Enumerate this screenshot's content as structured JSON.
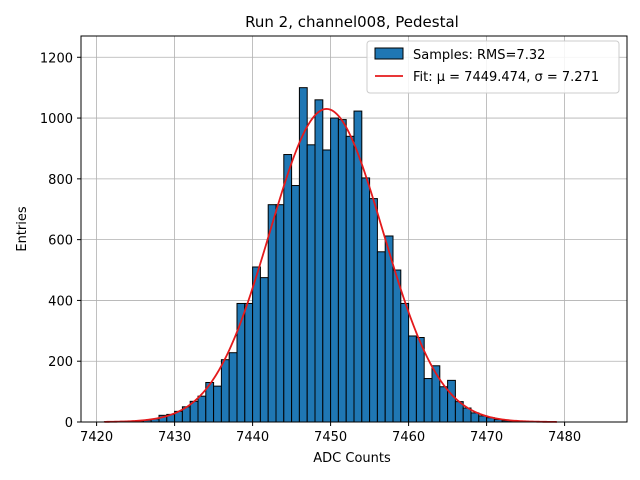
{
  "chart_data": {
    "type": "bar",
    "title": "Run 2, channel008, Pedestal",
    "xlabel": "ADC Counts",
    "ylabel": "Entries",
    "xlim": [
      7418,
      7488
    ],
    "ylim": [
      0,
      1270
    ],
    "x_ticks": [
      7420,
      7430,
      7440,
      7450,
      7460,
      7470,
      7480
    ],
    "y_ticks": [
      0,
      200,
      400,
      600,
      800,
      1000,
      1200
    ],
    "grid": true,
    "legend_position": "top-right",
    "colors": {
      "bars": "#1f77b4",
      "bar_edge": "#000000",
      "fit": "#e41a1c",
      "grid": "#b0b0b0"
    },
    "legend": [
      {
        "label": "Samples: RMS=7.32",
        "kind": "patch"
      },
      {
        "label": "Fit: μ = 7449.474, σ = 7.271",
        "kind": "line"
      }
    ],
    "histogram": {
      "bin_width": 1,
      "bin_starts": [
        7421,
        7422,
        7423,
        7424,
        7425,
        7426,
        7427,
        7428,
        7429,
        7430,
        7431,
        7432,
        7433,
        7434,
        7435,
        7436,
        7437,
        7438,
        7439,
        7440,
        7441,
        7442,
        7443,
        7444,
        7445,
        7446,
        7447,
        7448,
        7449,
        7450,
        7451,
        7452,
        7453,
        7454,
        7455,
        7456,
        7457,
        7458,
        7459,
        7460,
        7461,
        7462,
        7463,
        7464,
        7465,
        7466,
        7467,
        7468,
        7469,
        7470,
        7471,
        7472,
        7473,
        7474,
        7475,
        7476,
        7477,
        7478,
        7479,
        7480,
        7481,
        7482,
        7483,
        7484,
        7485
      ],
      "counts": [
        1,
        1,
        2,
        3,
        4,
        6,
        10,
        22,
        25,
        35,
        50,
        68,
        85,
        130,
        118,
        205,
        228,
        390,
        390,
        510,
        475,
        715,
        715,
        880,
        778,
        1100,
        912,
        1060,
        895,
        1000,
        995,
        940,
        1023,
        803,
        735,
        560,
        612,
        500,
        390,
        283,
        278,
        143,
        185,
        116,
        137,
        67,
        46,
        30,
        20,
        14,
        8,
        4,
        3,
        2,
        1,
        1,
        1,
        0,
        0,
        0,
        0,
        0,
        0,
        0,
        0
      ]
    },
    "fit": {
      "label": "Fit: μ = 7449.474, σ = 7.271",
      "mu": 7449.474,
      "sigma": 7.271,
      "amplitude": 1030,
      "x_range": [
        7421,
        7479
      ]
    }
  }
}
